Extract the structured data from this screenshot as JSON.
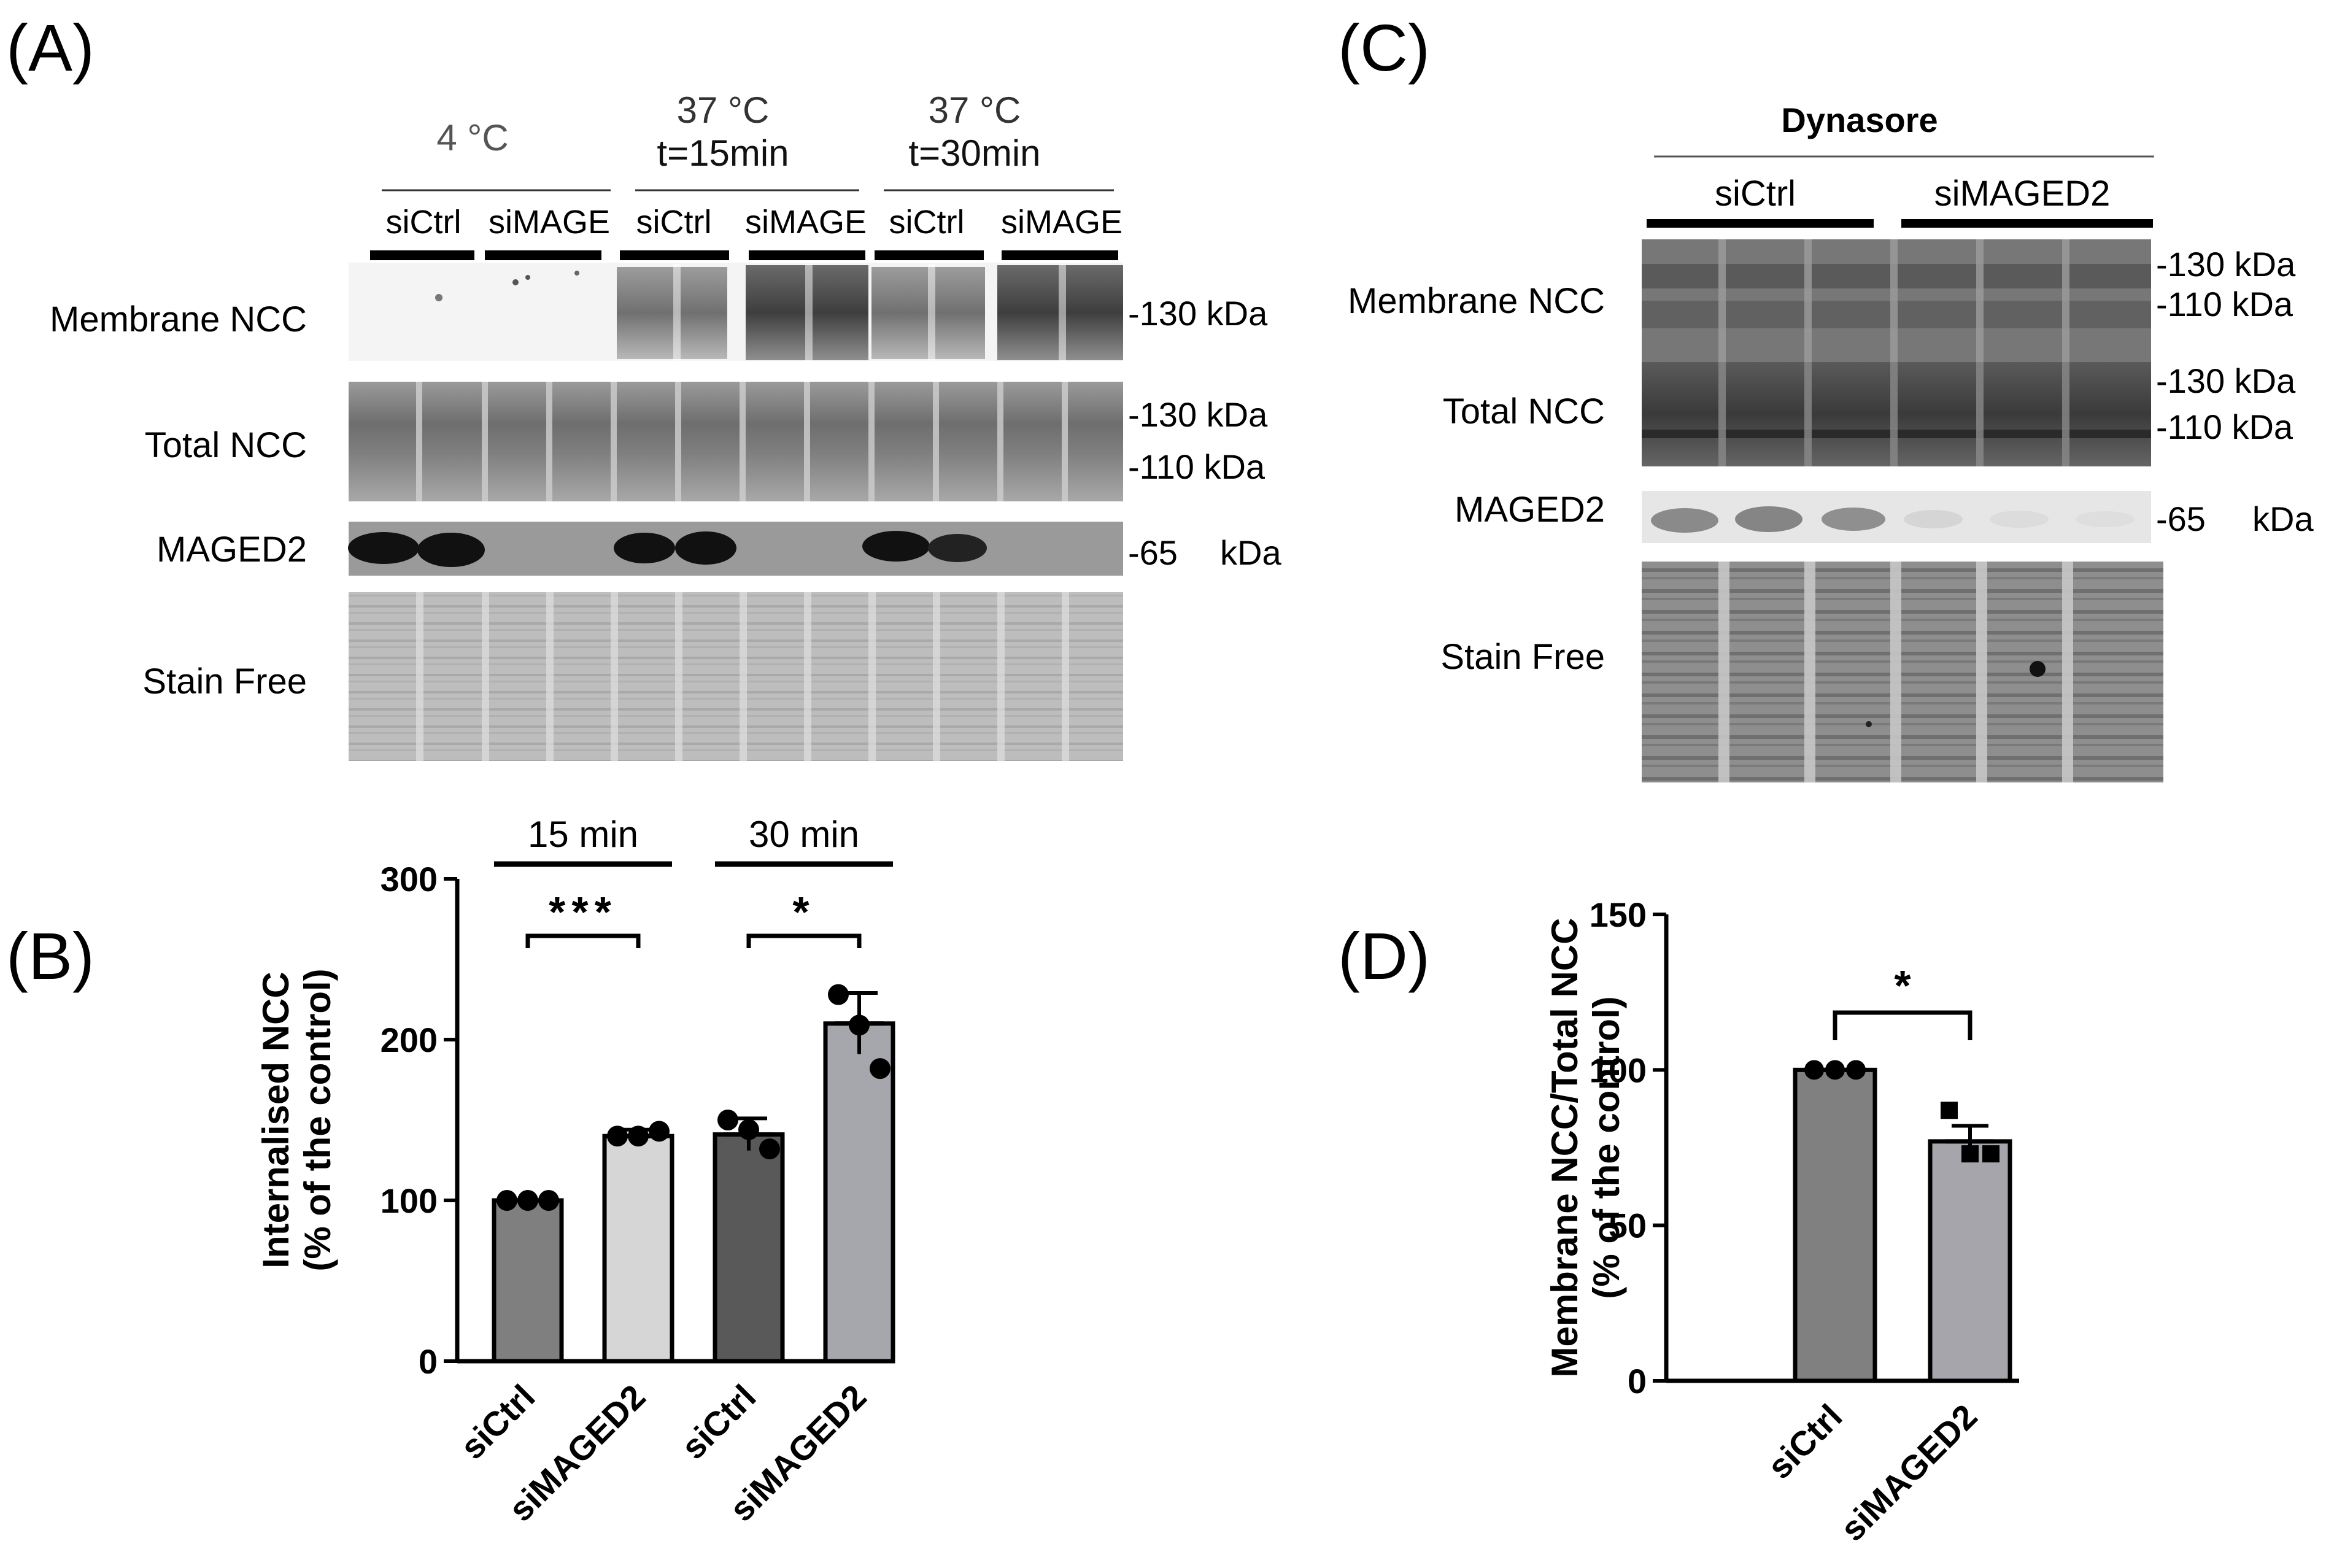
{
  "panels": {
    "a": {
      "label": "(A)",
      "groups": [
        {
          "temp": "4 °C",
          "time": ""
        },
        {
          "temp": "37 °C",
          "time": "t=15min"
        },
        {
          "temp": "37 °C",
          "time": "t=30min"
        }
      ],
      "lanes": [
        "siCtrl",
        "siMAGE",
        "siCtrl",
        "siMAGE",
        "siCtrl",
        "siMAGE"
      ],
      "rows": [
        "Membrane NCC",
        "Total NCC",
        "MAGED2",
        "Stain Free"
      ],
      "markers": [
        "-130 kDa",
        "-130 kDa",
        "-110 kDa",
        "-65",
        "kDa"
      ]
    },
    "c": {
      "label": "(C)",
      "treatment": "Dynasore",
      "lanes": [
        "siCtrl",
        "siMAGED2"
      ],
      "rows": [
        "Membrane NCC",
        "Total NCC",
        "MAGED2",
        "Stain Free"
      ],
      "markers": [
        "-130 kDa",
        "-110 kDa",
        "-130 kDa",
        "-110 kDa",
        "-65",
        "kDa"
      ]
    },
    "b": {
      "label": "(B)"
    },
    "d": {
      "label": "(D)"
    }
  },
  "colors": {
    "bar_b": [
      "#7f7f7f",
      "#d6d6d6",
      "#595959",
      "#a6a6ad"
    ],
    "bar_d": [
      "#808080",
      "#a5a5ab"
    ]
  },
  "chart_data": [
    {
      "panel": "B",
      "type": "bar",
      "ylabel": "Internalised NCC",
      "ylabel2": "(% of the control)",
      "ylim": [
        0,
        300
      ],
      "yticks": [
        0,
        100,
        200,
        300
      ],
      "categories": [
        "siCtrl",
        "siMAGED2",
        "siCtrl",
        "siMAGED2"
      ],
      "values": [
        100,
        140,
        141,
        210
      ],
      "errors": [
        0,
        4,
        10,
        19
      ],
      "points": [
        [
          100,
          100,
          100
        ],
        [
          140,
          140,
          143
        ],
        [
          150,
          144,
          132
        ],
        [
          228,
          209,
          182
        ]
      ],
      "groups": [
        {
          "label": "15 min",
          "significance": "***"
        },
        {
          "label": "30 min",
          "significance": "*"
        }
      ]
    },
    {
      "panel": "D",
      "type": "bar",
      "ylabel": "Membrane NCC/Total NCC",
      "ylabel2": "(% of the control)",
      "ylim": [
        0,
        150
      ],
      "yticks": [
        0,
        50,
        100,
        150
      ],
      "categories": [
        "siCtrl",
        "siMAGED2"
      ],
      "values": [
        100,
        77
      ],
      "errors": [
        0,
        5
      ],
      "points": [
        [
          100,
          100,
          100
        ],
        [
          87,
          73,
          73
        ]
      ],
      "significance": "*"
    }
  ]
}
